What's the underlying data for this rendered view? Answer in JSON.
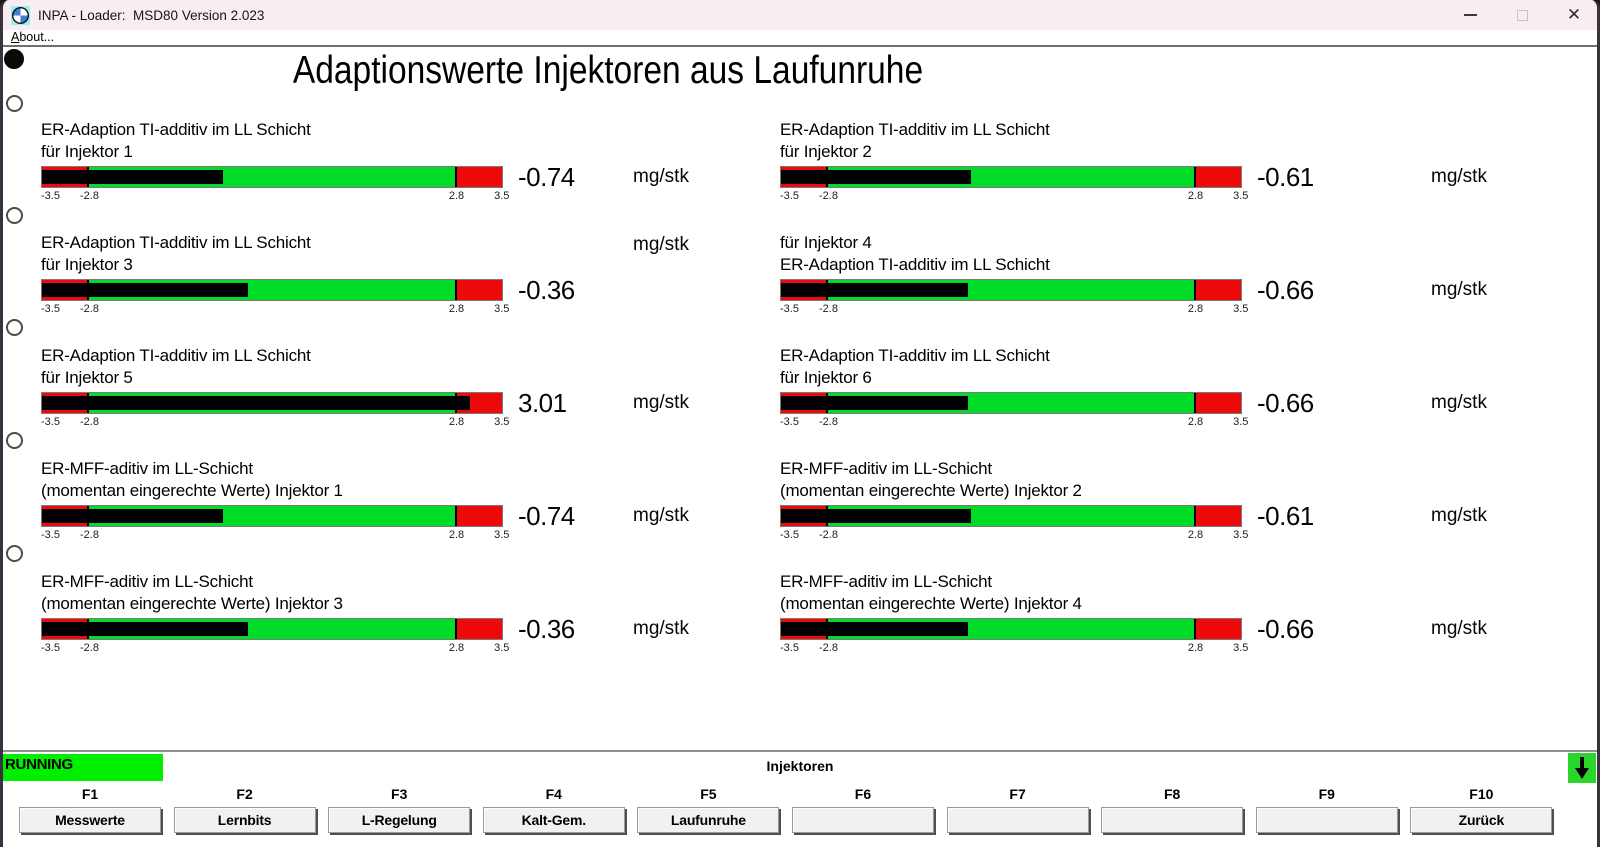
{
  "window": {
    "title": "INPA - Loader:  MSD80 Version 2.023",
    "icon": "bmw-logo"
  },
  "menu": {
    "about_label": "About..."
  },
  "page_title": "Adaptionswerte Injektoren aus Laufunruhe",
  "colors": {
    "bar_green": "#00dc28",
    "bar_red": "#ee0a0a",
    "bar_fill": "#000000",
    "running_green": "#00ee00",
    "arrow_green": "#2bd62b",
    "titlebar_bg": "#f8eef1"
  },
  "side_indicators": [
    {
      "state": "filled"
    },
    {
      "state": "empty"
    },
    {
      "state": "empty"
    },
    {
      "state": "empty"
    },
    {
      "state": "empty"
    },
    {
      "state": "empty"
    }
  ],
  "gauges": [
    {
      "row": 1,
      "col": "left",
      "label_line1": "ER-Adaption TI-additiv im LL Schicht",
      "label_line2": "für Injektor 1",
      "value": -0.74,
      "value_text": "-0.74",
      "unit": "mg/stk",
      "unit_position": "bar",
      "scale": {
        "min": -3.5,
        "max": 3.5,
        "green_from": -2.8,
        "green_to": 2.8
      },
      "scale_labels": [
        "-3.5",
        "-2.8",
        "2.8",
        "3.5"
      ]
    },
    {
      "row": 1,
      "col": "right",
      "label_line1": "ER-Adaption TI-additiv im LL Schicht",
      "label_line2": "für Injektor 2",
      "value": -0.61,
      "value_text": "-0.61",
      "unit": "mg/stk",
      "unit_position": "bar",
      "scale": {
        "min": -3.5,
        "max": 3.5,
        "green_from": -2.8,
        "green_to": 2.8
      },
      "scale_labels": [
        "-3.5",
        "-2.8",
        "2.8",
        "3.5"
      ]
    },
    {
      "row": 2,
      "col": "left",
      "label_line1": "ER-Adaption TI-additiv im LL Schicht",
      "label_line2": "für Injektor 3",
      "value": -0.36,
      "value_text": "-0.36",
      "unit": "mg/stk",
      "unit_position": "label",
      "scale": {
        "min": -3.5,
        "max": 3.5,
        "green_from": -2.8,
        "green_to": 2.8
      },
      "scale_labels": [
        "-3.5",
        "-2.8",
        "2.8",
        "3.5"
      ]
    },
    {
      "row": 2,
      "col": "right",
      "label_line1": "für Injektor 4",
      "label_line2": "ER-Adaption TI-additiv im LL Schicht",
      "value": -0.66,
      "value_text": "-0.66",
      "unit": "mg/stk",
      "unit_position": "bar",
      "scale": {
        "min": -3.5,
        "max": 3.5,
        "green_from": -2.8,
        "green_to": 2.8
      },
      "scale_labels": [
        "-3.5",
        "-2.8",
        "2.8",
        "3.5"
      ]
    },
    {
      "row": 3,
      "col": "left",
      "label_line1": "ER-Adaption TI-additiv im LL Schicht",
      "label_line2": "für Injektor 5",
      "value": 3.01,
      "value_text": "3.01",
      "unit": "mg/stk",
      "unit_position": "bar",
      "scale": {
        "min": -3.5,
        "max": 3.5,
        "green_from": -2.8,
        "green_to": 2.8
      },
      "scale_labels": [
        "-3.5",
        "-2.8",
        "2.8",
        "3.5"
      ]
    },
    {
      "row": 3,
      "col": "right",
      "label_line1": "ER-Adaption TI-additiv im LL Schicht",
      "label_line2": "für Injektor 6",
      "value": -0.66,
      "value_text": "-0.66",
      "unit": "mg/stk",
      "unit_position": "bar",
      "scale": {
        "min": -3.5,
        "max": 3.5,
        "green_from": -2.8,
        "green_to": 2.8
      },
      "scale_labels": [
        "-3.5",
        "-2.8",
        "2.8",
        "3.5"
      ]
    },
    {
      "row": 4,
      "col": "left",
      "label_line1": "ER-MFF-aditiv im LL-Schicht",
      "label_line2": "(momentan eingerechte Werte) Injektor 1",
      "value": -0.74,
      "value_text": "-0.74",
      "unit": "mg/stk",
      "unit_position": "bar",
      "scale": {
        "min": -3.5,
        "max": 3.5,
        "green_from": -2.8,
        "green_to": 2.8
      },
      "scale_labels": [
        "-3.5",
        "-2.8",
        "2.8",
        "3.5"
      ]
    },
    {
      "row": 4,
      "col": "right",
      "label_line1": "ER-MFF-aditiv im LL-Schicht",
      "label_line2": "(momentan eingerechte Werte) Injektor 2",
      "value": -0.61,
      "value_text": "-0.61",
      "unit": "mg/stk",
      "unit_position": "bar",
      "scale": {
        "min": -3.5,
        "max": 3.5,
        "green_from": -2.8,
        "green_to": 2.8
      },
      "scale_labels": [
        "-3.5",
        "-2.8",
        "2.8",
        "3.5"
      ]
    },
    {
      "row": 5,
      "col": "left",
      "label_line1": "ER-MFF-aditiv im LL-Schicht",
      "label_line2": "(momentan eingerechte Werte) Injektor 3",
      "value": -0.36,
      "value_text": "-0.36",
      "unit": "mg/stk",
      "unit_position": "bar",
      "scale": {
        "min": -3.5,
        "max": 3.5,
        "green_from": -2.8,
        "green_to": 2.8
      },
      "scale_labels": [
        "-3.5",
        "-2.8",
        "2.8",
        "3.5"
      ]
    },
    {
      "row": 5,
      "col": "right",
      "label_line1": "ER-MFF-aditiv im LL-Schicht",
      "label_line2": "(momentan eingerechte Werte) Injektor 4",
      "value": -0.66,
      "value_text": "-0.66",
      "unit": "mg/stk",
      "unit_position": "bar",
      "scale": {
        "min": -3.5,
        "max": 3.5,
        "green_from": -2.8,
        "green_to": 2.8
      },
      "scale_labels": [
        "-3.5",
        "-2.8",
        "2.8",
        "3.5"
      ]
    }
  ],
  "status_bar": {
    "state_label": "RUNNING",
    "center_label": "Injektoren",
    "scroll_arrow": "down-arrow"
  },
  "function_keys": [
    {
      "key": "F1",
      "label": "Messwerte"
    },
    {
      "key": "F2",
      "label": "Lernbits"
    },
    {
      "key": "F3",
      "label": "L-Regelung"
    },
    {
      "key": "F4",
      "label": "Kalt-Gem."
    },
    {
      "key": "F5",
      "label": "Laufunruhe"
    },
    {
      "key": "F6",
      "label": ""
    },
    {
      "key": "F7",
      "label": ""
    },
    {
      "key": "F8",
      "label": ""
    },
    {
      "key": "F9",
      "label": ""
    },
    {
      "key": "F10",
      "label": "Zurück"
    }
  ]
}
